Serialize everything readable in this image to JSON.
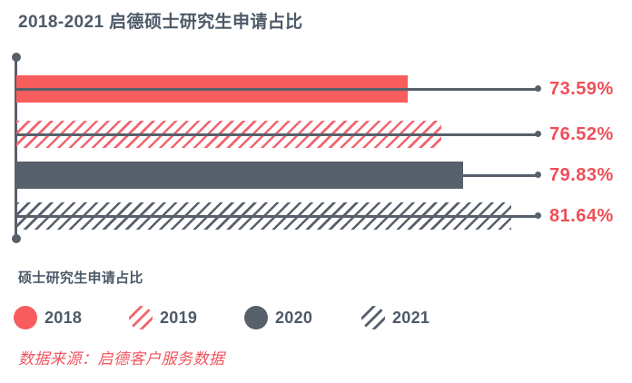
{
  "chart_data": {
    "type": "bar",
    "orientation": "horizontal",
    "title": "2018-2021 启德硕士研究生申请占比",
    "categories": [
      "2018",
      "2019",
      "2020",
      "2021"
    ],
    "values": [
      73.59,
      76.52,
      79.83,
      81.64
    ],
    "value_labels": [
      "73.59%",
      "76.52%",
      "79.83%",
      "81.64%"
    ],
    "unit": "%",
    "xlim": [
      0,
      100
    ],
    "grid": false,
    "legend_title": "硕士研究生申请占比",
    "legend_position": "bottom",
    "series_styles": [
      {
        "year": "2018",
        "fill": "solid",
        "color": "red"
      },
      {
        "year": "2019",
        "fill": "stripes",
        "color": "red"
      },
      {
        "year": "2020",
        "fill": "solid",
        "color": "dark"
      },
      {
        "year": "2021",
        "fill": "stripes",
        "color": "dark"
      }
    ]
  },
  "source_note": "数据来源：启德客户服务数据",
  "colors": {
    "bar_red": "#f85d5d",
    "stripe_red": "#f2646e",
    "slate": "#57606b",
    "title_slate": "#4e5a68",
    "value_red": "#ee4f58",
    "source_red": "#f0565f",
    "background": "#ffffff"
  }
}
